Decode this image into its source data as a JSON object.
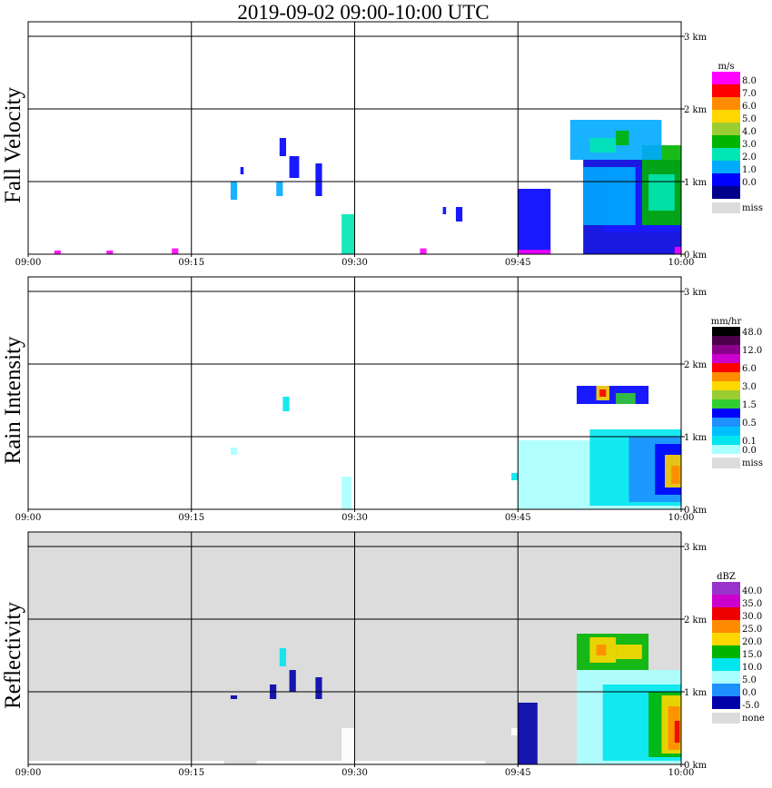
{
  "chart_data": {
    "title": "2019-09-02   09:00-10:00 UTC",
    "time_ticks": [
      "09:00",
      "09:15",
      "09:30",
      "09:45",
      "10:00"
    ],
    "height_ticks": [
      "0 km",
      "1 km",
      "2 km",
      "3 km"
    ],
    "panels": [
      {
        "type": "heatmap",
        "ylabel": "Fall Velocity",
        "unit": "m/s",
        "background": "#ffffff",
        "legend": [
          {
            "label": "8.0",
            "color": "#ff00ff"
          },
          {
            "label": "7.0",
            "color": "#ff0000"
          },
          {
            "label": "6.0",
            "color": "#ff8c00"
          },
          {
            "label": "5.0",
            "color": "#ffd700"
          },
          {
            "label": "4.0",
            "color": "#9acd32"
          },
          {
            "label": "3.0",
            "color": "#00b400"
          },
          {
            "label": "2.0",
            "color": "#00e6b4"
          },
          {
            "label": "1.0",
            "color": "#00aaff"
          },
          {
            "label": "0.0",
            "color": "#0000ff"
          },
          {
            "label": "",
            "color": "#00008b"
          }
        ],
        "missing_label": "miss",
        "missing_color": "#dcdcdc",
        "echoes": [
          {
            "t0": 9.85,
            "t1": 10.0,
            "z0": 0.0,
            "z1": 1.3,
            "color": "#0000dd"
          },
          {
            "t0": 9.88,
            "t1": 10.0,
            "z0": 0.3,
            "z1": 1.2,
            "color": "#1a1aff"
          },
          {
            "t0": 9.94,
            "t1": 10.0,
            "z0": 0.4,
            "z1": 1.5,
            "color": "#00b400"
          },
          {
            "t0": 9.95,
            "t1": 9.99,
            "z0": 0.6,
            "z1": 1.1,
            "color": "#00e6b4"
          },
          {
            "t0": 9.83,
            "t1": 9.97,
            "z0": 1.3,
            "z1": 1.85,
            "color": "#00aaff"
          },
          {
            "t0": 9.86,
            "t1": 9.9,
            "z0": 1.4,
            "z1": 1.6,
            "color": "#00e6b4"
          },
          {
            "t0": 9.9,
            "t1": 9.92,
            "z0": 1.5,
            "z1": 1.7,
            "color": "#00b400"
          },
          {
            "t0": 9.85,
            "t1": 9.93,
            "z0": 0.4,
            "z1": 1.2,
            "color": "#00aaff"
          },
          {
            "t0": 9.75,
            "t1": 9.8,
            "z0": 0.0,
            "z1": 0.9,
            "color": "#0000ff"
          },
          {
            "t0": 9.75,
            "t1": 9.8,
            "z0": 0.0,
            "z1": 0.06,
            "color": "#ff00ff"
          },
          {
            "t0": 9.99,
            "t1": 10.0,
            "z0": 0.0,
            "z1": 0.1,
            "color": "#ff00ff"
          },
          {
            "t0": 9.48,
            "t1": 9.5,
            "z0": 0.0,
            "z1": 0.55,
            "color": "#00e6b4"
          },
          {
            "t0": 9.385,
            "t1": 9.395,
            "z0": 1.35,
            "z1": 1.6,
            "color": "#0000ff"
          },
          {
            "t0": 9.4,
            "t1": 9.415,
            "z0": 1.05,
            "z1": 1.35,
            "color": "#0000ff"
          },
          {
            "t0": 9.38,
            "t1": 9.39,
            "z0": 0.8,
            "z1": 1.0,
            "color": "#00aaff"
          },
          {
            "t0": 9.44,
            "t1": 9.45,
            "z0": 0.8,
            "z1": 1.25,
            "color": "#0000ff"
          },
          {
            "t0": 9.31,
            "t1": 9.32,
            "z0": 0.75,
            "z1": 1.0,
            "color": "#00aaff"
          },
          {
            "t0": 9.325,
            "t1": 9.33,
            "z0": 1.1,
            "z1": 1.2,
            "color": "#0000ff"
          },
          {
            "t0": 9.655,
            "t1": 9.665,
            "z0": 0.45,
            "z1": 0.65,
            "color": "#0000ff"
          },
          {
            "t0": 9.635,
            "t1": 9.64,
            "z0": 0.55,
            "z1": 0.65,
            "color": "#0000ff"
          },
          {
            "t0": 9.04,
            "t1": 9.05,
            "z0": 0.0,
            "z1": 0.05,
            "color": "#ff00ff"
          },
          {
            "t0": 9.12,
            "t1": 9.13,
            "z0": 0.0,
            "z1": 0.05,
            "color": "#ff00ff"
          },
          {
            "t0": 9.22,
            "t1": 9.23,
            "z0": 0.0,
            "z1": 0.08,
            "color": "#ff00ff"
          },
          {
            "t0": 9.6,
            "t1": 9.61,
            "z0": 0.0,
            "z1": 0.08,
            "color": "#ff00ff"
          }
        ]
      },
      {
        "type": "heatmap",
        "ylabel": "Rain Intensity",
        "unit": "mm/hr",
        "background": "#ffffff",
        "legend": [
          {
            "label": "48.0",
            "color": "#000000"
          },
          {
            "label": "",
            "color": "#4b004b"
          },
          {
            "label": "12.0",
            "color": "#8b008b"
          },
          {
            "label": "",
            "color": "#cc00cc"
          },
          {
            "label": "6.0",
            "color": "#ff0000"
          },
          {
            "label": "",
            "color": "#ff8c00"
          },
          {
            "label": "3.0",
            "color": "#ffd700"
          },
          {
            "label": "",
            "color": "#9acd32"
          },
          {
            "label": "1.5",
            "color": "#32cd32"
          },
          {
            "label": "",
            "color": "#0000ff"
          },
          {
            "label": "0.5",
            "color": "#1e90ff"
          },
          {
            "label": "",
            "color": "#00bfff"
          },
          {
            "label": "0.1",
            "color": "#00e5ee"
          },
          {
            "label": "0.0",
            "color": "#aaffff"
          }
        ],
        "missing_label": "miss",
        "missing_color": "#dcdcdc",
        "echoes": [
          {
            "t0": 9.75,
            "t1": 10.0,
            "z0": 0.0,
            "z1": 0.95,
            "color": "#aaffff"
          },
          {
            "t0": 9.86,
            "t1": 10.0,
            "z0": 0.05,
            "z1": 1.1,
            "color": "#00e5ee"
          },
          {
            "t0": 9.92,
            "t1": 10.0,
            "z0": 0.1,
            "z1": 1.0,
            "color": "#1e90ff"
          },
          {
            "t0": 9.96,
            "t1": 10.0,
            "z0": 0.2,
            "z1": 0.9,
            "color": "#0000ff"
          },
          {
            "t0": 9.975,
            "t1": 10.0,
            "z0": 0.3,
            "z1": 0.75,
            "color": "#ffd700"
          },
          {
            "t0": 9.985,
            "t1": 9.998,
            "z0": 0.35,
            "z1": 0.6,
            "color": "#ff8c00"
          },
          {
            "t0": 9.84,
            "t1": 9.95,
            "z0": 1.45,
            "z1": 1.7,
            "color": "#0000ff"
          },
          {
            "t0": 9.87,
            "t1": 9.89,
            "z0": 1.5,
            "z1": 1.7,
            "color": "#ffd700"
          },
          {
            "t0": 9.875,
            "t1": 9.885,
            "z0": 1.55,
            "z1": 1.65,
            "color": "#ff0000"
          },
          {
            "t0": 9.9,
            "t1": 9.93,
            "z0": 1.45,
            "z1": 1.6,
            "color": "#32cd32"
          },
          {
            "t0": 9.39,
            "t1": 9.4,
            "z0": 1.35,
            "z1": 1.55,
            "color": "#00e5ee"
          },
          {
            "t0": 9.48,
            "t1": 9.495,
            "z0": 0.0,
            "z1": 0.45,
            "color": "#aaffff"
          },
          {
            "t0": 9.74,
            "t1": 9.75,
            "z0": 0.4,
            "z1": 0.5,
            "color": "#00e5ee"
          },
          {
            "t0": 9.31,
            "t1": 9.32,
            "z0": 0.75,
            "z1": 0.85,
            "color": "#aaffff"
          }
        ]
      },
      {
        "type": "heatmap",
        "ylabel": "Reflectivity",
        "unit": "dBZ",
        "background": "#dcdcdc",
        "legend": [
          {
            "label": "40.0",
            "color": "#9932cc"
          },
          {
            "label": "35.0",
            "color": "#cc00cc"
          },
          {
            "label": "30.0",
            "color": "#ee0000"
          },
          {
            "label": "25.0",
            "color": "#ff8c00"
          },
          {
            "label": "20.0",
            "color": "#ffd700"
          },
          {
            "label": "15.0",
            "color": "#00b400"
          },
          {
            "label": "10.0",
            "color": "#00e5ee"
          },
          {
            "label": "5.0",
            "color": "#aaffff"
          },
          {
            "label": "0.0",
            "color": "#1e90ff"
          },
          {
            "label": "-5.0",
            "color": "#0000aa"
          }
        ],
        "missing_label": "none",
        "missing_color": "#dcdcdc",
        "echoes": [
          {
            "t0": 9.75,
            "t1": 9.78,
            "z0": 0.0,
            "z1": 0.85,
            "color": "#0000aa"
          },
          {
            "t0": 9.84,
            "t1": 10.0,
            "z0": 0.0,
            "z1": 1.3,
            "color": "#aaffff"
          },
          {
            "t0": 9.88,
            "t1": 10.0,
            "z0": 0.05,
            "z1": 1.1,
            "color": "#00e5ee"
          },
          {
            "t0": 9.95,
            "t1": 10.0,
            "z0": 0.1,
            "z1": 1.0,
            "color": "#00b400"
          },
          {
            "t0": 9.97,
            "t1": 10.0,
            "z0": 0.15,
            "z1": 0.95,
            "color": "#ffd700"
          },
          {
            "t0": 9.98,
            "t1": 9.998,
            "z0": 0.2,
            "z1": 0.8,
            "color": "#ff8c00"
          },
          {
            "t0": 9.99,
            "t1": 9.998,
            "z0": 0.3,
            "z1": 0.6,
            "color": "#ee0000"
          },
          {
            "t0": 9.84,
            "t1": 9.95,
            "z0": 1.3,
            "z1": 1.8,
            "color": "#00b400"
          },
          {
            "t0": 9.86,
            "t1": 9.9,
            "z0": 1.4,
            "z1": 1.75,
            "color": "#ffd700"
          },
          {
            "t0": 9.87,
            "t1": 9.885,
            "z0": 1.5,
            "z1": 1.65,
            "color": "#ff8c00"
          },
          {
            "t0": 9.9,
            "t1": 9.94,
            "z0": 1.45,
            "z1": 1.65,
            "color": "#ffd700"
          },
          {
            "t0": 9.385,
            "t1": 9.395,
            "z0": 1.35,
            "z1": 1.6,
            "color": "#00e5ee"
          },
          {
            "t0": 9.37,
            "t1": 9.38,
            "z0": 0.9,
            "z1": 1.1,
            "color": "#0000aa"
          },
          {
            "t0": 9.4,
            "t1": 9.41,
            "z0": 1.0,
            "z1": 1.3,
            "color": "#0000aa"
          },
          {
            "t0": 9.44,
            "t1": 9.45,
            "z0": 0.9,
            "z1": 1.2,
            "color": "#0000aa"
          },
          {
            "t0": 9.31,
            "t1": 9.32,
            "z0": 0.9,
            "z1": 0.95,
            "color": "#0000aa"
          },
          {
            "t0": 9.0,
            "t1": 9.3,
            "z0": 0.0,
            "z1": 0.05,
            "color": "#ffffff"
          },
          {
            "t0": 9.35,
            "t1": 9.7,
            "z0": 0.0,
            "z1": 0.05,
            "color": "#ffffff"
          },
          {
            "t0": 9.48,
            "t1": 9.5,
            "z0": 0.0,
            "z1": 0.5,
            "color": "#ffffff"
          },
          {
            "t0": 9.74,
            "t1": 9.75,
            "z0": 0.4,
            "z1": 0.5,
            "color": "#ffffff"
          }
        ]
      }
    ]
  }
}
